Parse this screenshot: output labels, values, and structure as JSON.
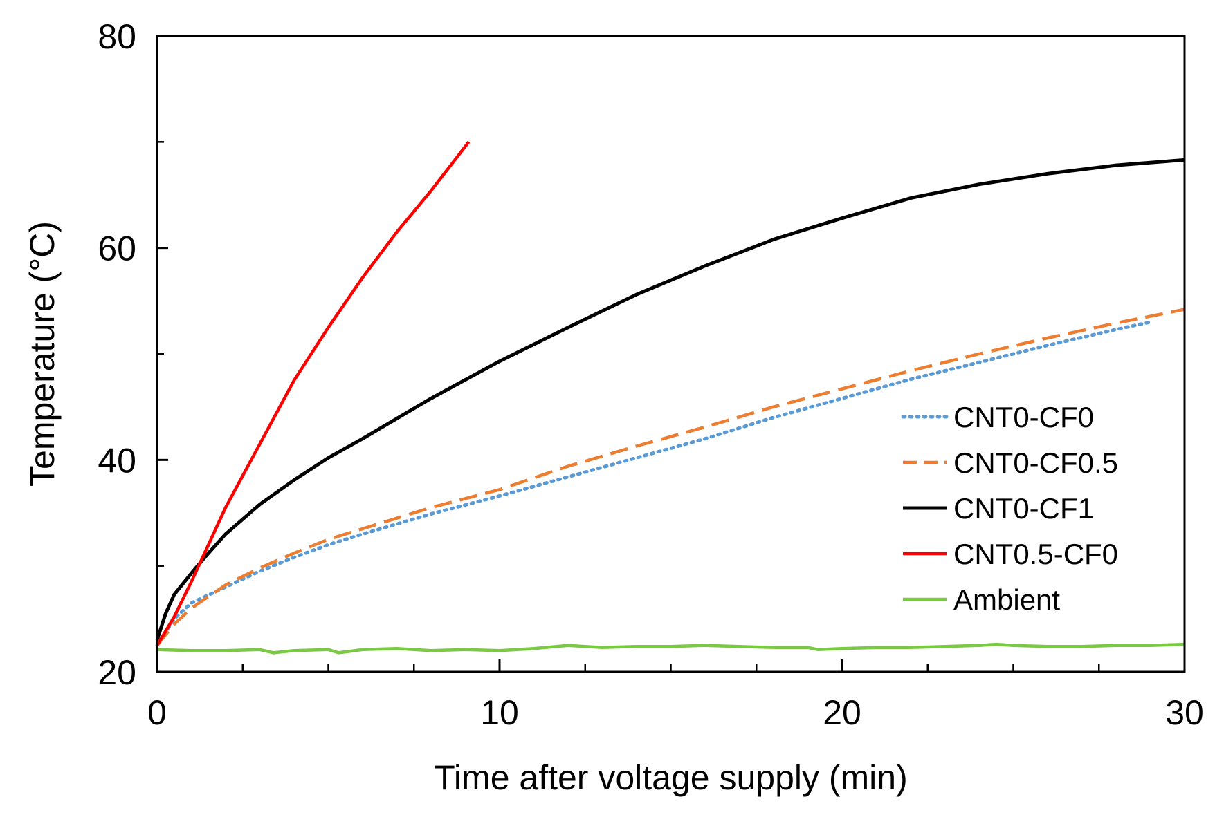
{
  "chart_data": {
    "type": "line",
    "title": "",
    "xlabel": "Time after voltage supply (min)",
    "ylabel": "Temperature (°C)",
    "xlim": [
      0,
      30
    ],
    "ylim": [
      20,
      80
    ],
    "xticks_major": [
      0,
      10,
      20,
      30
    ],
    "xticks_major_labels": [
      "0",
      "10",
      "20",
      "30"
    ],
    "xticks_minor": [
      2.5,
      5,
      7.5,
      12.5,
      15,
      17.5,
      22.5,
      25,
      27.5
    ],
    "yticks_major": [
      20,
      40,
      60,
      80
    ],
    "yticks_major_labels": [
      "20",
      "40",
      "60",
      "80"
    ],
    "yticks_minor": [
      30,
      50,
      70
    ],
    "grid": false,
    "legend_position": "right",
    "series": [
      {
        "name": "CNT0-CF0",
        "color": "#5B9BD5",
        "style": "dotted",
        "x": [
          0,
          0.5,
          1,
          2,
          3,
          4,
          5,
          6,
          8,
          10,
          12,
          14,
          16,
          18,
          20,
          22,
          24,
          26,
          28,
          29
        ],
        "y": [
          22.5,
          25.0,
          26.5,
          28.0,
          29.5,
          30.8,
          32.0,
          33.0,
          34.9,
          36.6,
          38.4,
          40.2,
          42.0,
          44.0,
          45.8,
          47.6,
          49.2,
          50.8,
          52.3,
          53.0
        ]
      },
      {
        "name": "CNT0-CF0.5",
        "color": "#ED7D31",
        "style": "dashed",
        "x": [
          0,
          0.5,
          1,
          2,
          3,
          4,
          5,
          6,
          8,
          10,
          12,
          14,
          16,
          18,
          20,
          22,
          24,
          26,
          28,
          30
        ],
        "y": [
          22.5,
          24.5,
          26.0,
          28.2,
          29.8,
          31.2,
          32.5,
          33.5,
          35.5,
          37.2,
          39.4,
          41.3,
          43.1,
          45.0,
          46.7,
          48.4,
          50.0,
          51.5,
          52.9,
          54.2
        ]
      },
      {
        "name": "CNT0-CF1",
        "color": "#000000",
        "style": "solid",
        "x": [
          0,
          0.25,
          0.5,
          1,
          1.5,
          2,
          3,
          4,
          5,
          6,
          8,
          10,
          12,
          14,
          16,
          18,
          20,
          22,
          24,
          26,
          28,
          30
        ],
        "y": [
          23.0,
          25.5,
          27.3,
          29.3,
          31.2,
          33.0,
          35.8,
          38.1,
          40.2,
          42.0,
          45.8,
          49.3,
          52.5,
          55.6,
          58.3,
          60.8,
          62.8,
          64.7,
          66.0,
          67.0,
          67.8,
          68.3
        ]
      },
      {
        "name": "CNT0.5-CF0",
        "color": "#FF0000",
        "style": "solid",
        "x": [
          0,
          0.5,
          1,
          1.5,
          2,
          3,
          4,
          5,
          6,
          7,
          8,
          9.1
        ],
        "y": [
          22.5,
          25.2,
          28.5,
          32.0,
          35.5,
          41.5,
          47.5,
          52.5,
          57.2,
          61.5,
          65.4,
          70.0
        ]
      },
      {
        "name": "Ambient",
        "color": "#7AC943",
        "style": "solid",
        "x": [
          0,
          1,
          2,
          3,
          3.4,
          4,
          5,
          5.3,
          6,
          7,
          8,
          9,
          10,
          11,
          12,
          13,
          14,
          15,
          16,
          17,
          18,
          19,
          19.3,
          20,
          21,
          22,
          23,
          24,
          24.5,
          25,
          26,
          27,
          28,
          29,
          30
        ],
        "y": [
          22.1,
          22.0,
          22.0,
          22.1,
          21.8,
          22.0,
          22.1,
          21.8,
          22.1,
          22.2,
          22.0,
          22.1,
          22.0,
          22.2,
          22.5,
          22.3,
          22.4,
          22.4,
          22.5,
          22.4,
          22.3,
          22.3,
          22.1,
          22.2,
          22.3,
          22.3,
          22.4,
          22.5,
          22.6,
          22.5,
          22.4,
          22.4,
          22.5,
          22.5,
          22.6
        ]
      }
    ]
  }
}
